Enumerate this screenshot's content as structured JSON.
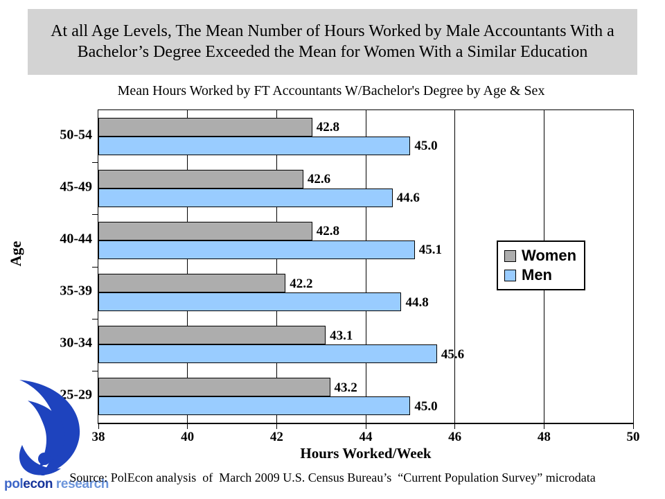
{
  "header": {
    "title": "At all Age Levels, The Mean Number of Hours Worked by Male Accountants With a Bachelor’s Degree Exceeded the Mean for Women With a Similar Education"
  },
  "chart_data": {
    "type": "bar",
    "orientation": "horizontal",
    "title": "Mean Hours Worked by FT Accountants W/Bachelor's Degree by Age & Sex",
    "categories": [
      "50-54",
      "45-49",
      "40-44",
      "35-39",
      "30-34",
      "25-29"
    ],
    "series": [
      {
        "name": "Women",
        "color": "#ADADAD",
        "values": [
          42.8,
          42.6,
          42.8,
          42.2,
          43.1,
          43.2
        ]
      },
      {
        "name": "Men",
        "color": "#99CCFF",
        "values": [
          45.0,
          44.6,
          45.1,
          44.8,
          45.6,
          45.0
        ]
      }
    ],
    "xlabel": "Hours Worked/Week",
    "ylabel": "Age",
    "xlim": [
      38,
      50
    ],
    "xticks": [
      38,
      40,
      42,
      44,
      46,
      48,
      50
    ],
    "grid": true,
    "legend_position": "middle-right",
    "value_label_decimals": 1
  },
  "footer": {
    "source": "Source: PolEcon analysis  of  March 2009 U.S. Census Bureau’s  “Current Population Survey” microdata"
  },
  "logo": {
    "pol": "pol",
    "econ": "econ",
    "research": " research",
    "swirl_color": "#1E43BE"
  }
}
